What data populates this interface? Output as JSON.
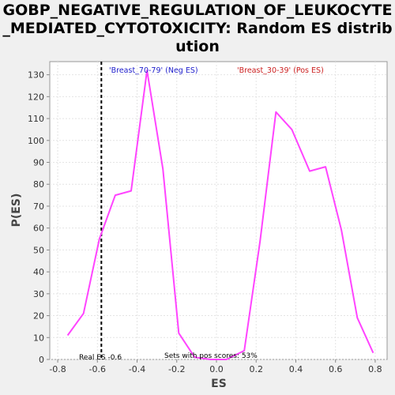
{
  "title": "GOBP_NEGATIVE_REGULATION_OF_LEUKOCYTE_MEDIATED_CYTOTOXICITY: Random ES distribution",
  "colors": {
    "background": "#f0f0f0",
    "plot_background": "#ffffff",
    "line": "#ff44ff",
    "neg_label": "#2020cc",
    "pos_label": "#cc2020",
    "real_es_line": "#000000",
    "grid": "#e4e4e4"
  },
  "chart_data": {
    "type": "line",
    "xlabel": "ES",
    "ylabel": "P(ES)",
    "xlim": [
      -0.84,
      0.86
    ],
    "ylim": [
      0,
      136
    ],
    "grid": true,
    "x_ticks": [
      -0.8,
      -0.6,
      -0.4,
      -0.2,
      0.0,
      0.2,
      0.4,
      0.6,
      0.8
    ],
    "x_tick_labels": [
      "-0.8",
      "-0.6",
      "-0.4",
      "-0.2",
      "0.0",
      "0.2",
      "0.4",
      "0.6",
      "0.8"
    ],
    "y_ticks": [
      0,
      10,
      20,
      30,
      40,
      50,
      60,
      70,
      80,
      90,
      100,
      110,
      120,
      130
    ],
    "series": [
      {
        "x": [
          -0.75,
          -0.67,
          -0.59,
          -0.51,
          -0.43,
          -0.35,
          -0.27,
          -0.19,
          -0.11,
          -0.03,
          0.05,
          0.14,
          0.22,
          0.3,
          0.38,
          0.47,
          0.55,
          0.63,
          0.71,
          0.79
        ],
        "y": [
          11,
          21,
          55,
          75,
          77,
          132,
          87,
          12,
          1,
          0,
          0,
          4,
          54,
          113,
          105,
          86,
          88,
          59,
          19,
          3
        ]
      }
    ],
    "real_es": -0.58,
    "annotations": {
      "neg_label": "'Breast_70-79' (Neg ES)",
      "pos_label": "'Breast_30-39' (Pos ES)",
      "real_es_label": "Real ES -0.6",
      "pos_scores_label": "Sets with pos scores: 53%"
    }
  }
}
